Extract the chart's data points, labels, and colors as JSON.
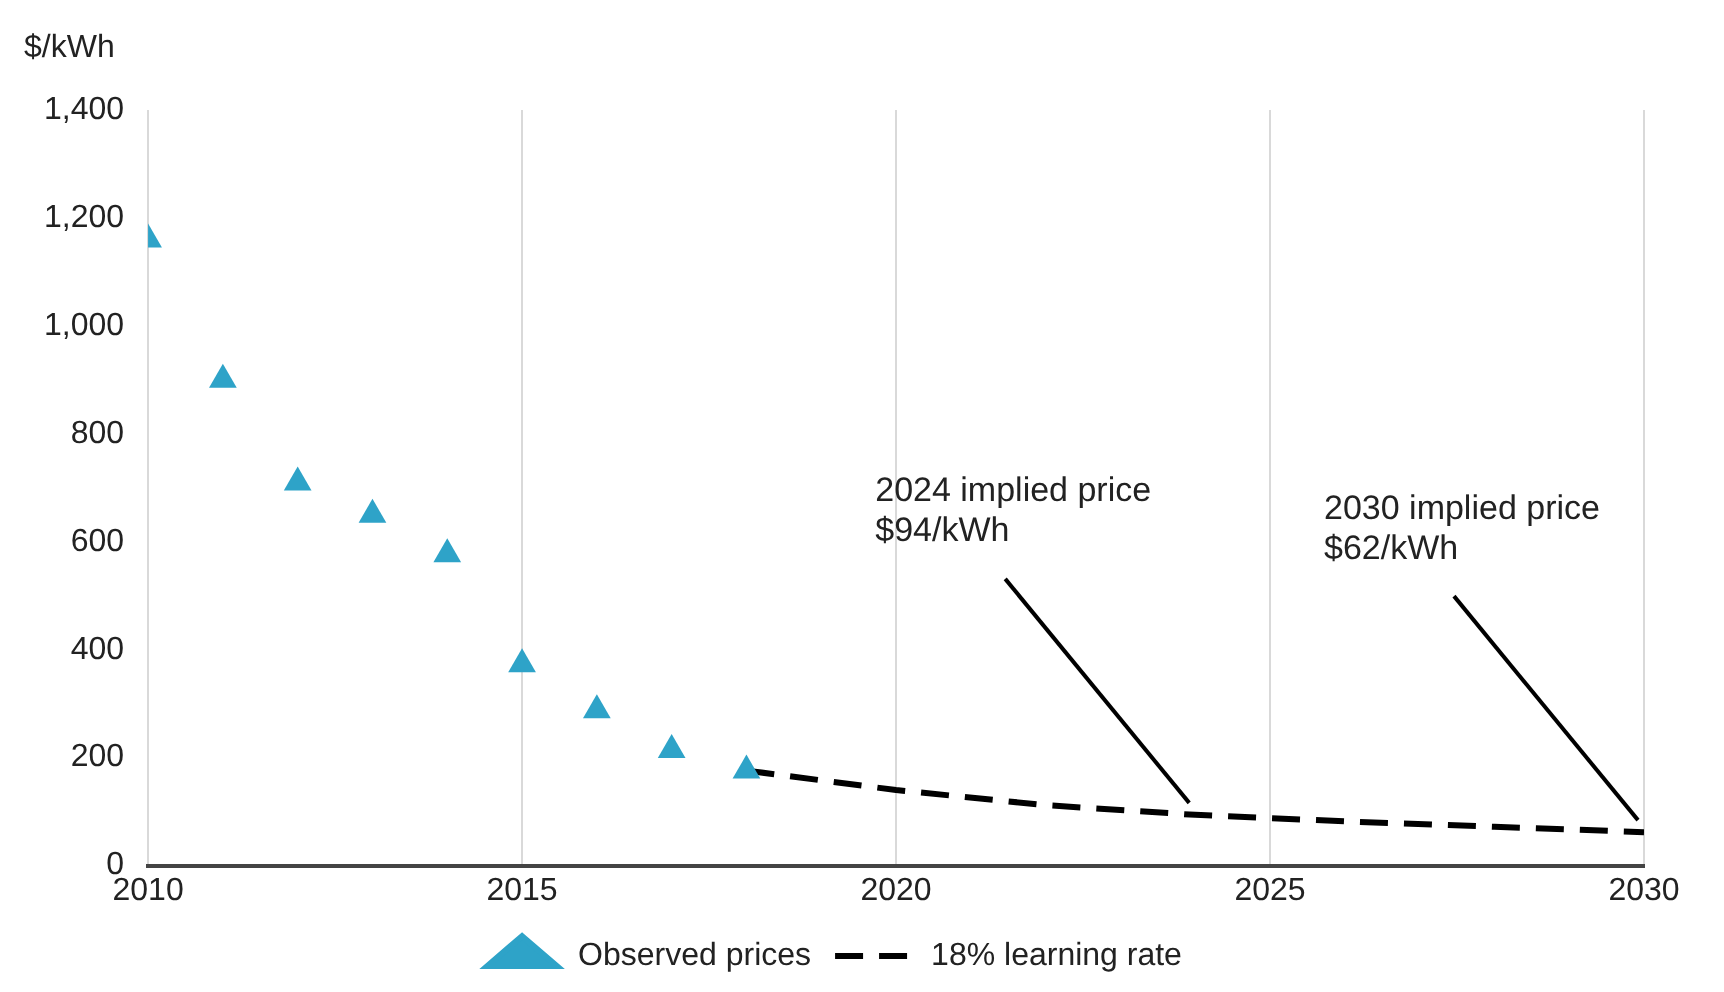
{
  "chart_data": {
    "type": "scatter",
    "ylabel": "$/kWh",
    "series": [
      {
        "name": "Observed prices",
        "color": "#2ea3c8",
        "marker": "triangle",
        "x": [
          2010,
          2011,
          2012,
          2013,
          2014,
          2015,
          2016,
          2017,
          2018
        ],
        "values": [
          1160,
          900,
          710,
          650,
          577,
          373,
          288,
          214,
          176
        ]
      },
      {
        "name": "18% learning rate",
        "type": "line",
        "color": "#000000",
        "marker": "none",
        "line_style": "dashed",
        "x": [
          2018,
          2020,
          2022,
          2024,
          2026,
          2028,
          2030
        ],
        "values": [
          176,
          140,
          112,
          94,
          82,
          72,
          62
        ]
      }
    ],
    "xlim": [
      2010,
      2030
    ],
    "xticks": [
      2010,
      2015,
      2020,
      2025,
      2030
    ],
    "ylim": [
      0,
      1400
    ],
    "yticks": [
      0,
      200,
      400,
      600,
      800,
      {
        "value": 1000,
        "label": "1,000"
      },
      {
        "value": 1200,
        "label": "1,200"
      },
      {
        "value": 1400,
        "label": "1,400"
      }
    ],
    "annotations": [
      {
        "text": "2024 implied price $94/kWh",
        "x": 2024,
        "y": 94
      },
      {
        "text": "2030 implied price $62/kWh",
        "x": 2030,
        "y": 62
      }
    ],
    "grid": "x",
    "legend": "bottom"
  }
}
